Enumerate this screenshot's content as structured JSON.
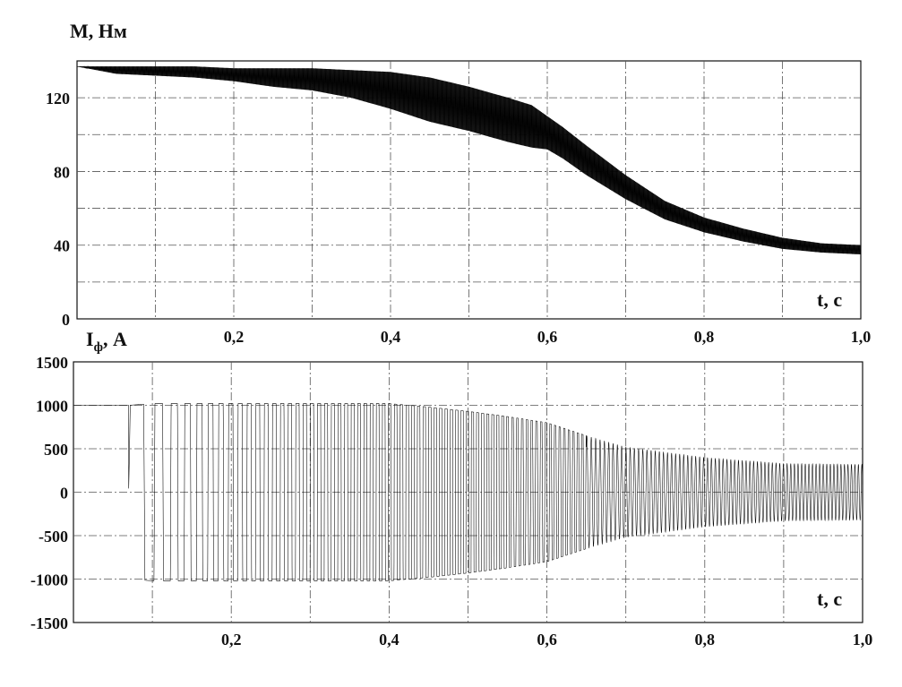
{
  "chart_data": [
    {
      "type": "line",
      "ylabel": "M, Нм",
      "xlabel": "t, с",
      "xlim": [
        0,
        1.0
      ],
      "ylim": [
        0,
        140
      ],
      "yticks": [
        0,
        40,
        80,
        120
      ],
      "ytick_labels": [
        "0",
        "40",
        "80",
        "120"
      ],
      "grid": true,
      "series": [
        {
          "x": [
            0,
            0.05,
            0.1,
            0.15,
            0.2,
            0.25,
            0.3,
            0.35,
            0.4,
            0.45,
            0.5,
            0.55,
            0.58,
            0.6,
            0.62,
            0.65,
            0.7,
            0.75,
            0.8,
            0.85,
            0.9,
            0.95,
            1.0
          ],
          "upper": [
            137,
            137,
            137,
            137,
            136,
            136,
            136,
            135,
            134,
            131,
            126,
            120,
            116,
            110,
            104,
            94,
            78,
            64,
            55,
            49,
            44,
            41,
            40
          ],
          "lower": [
            137,
            133,
            132,
            131,
            129,
            126,
            124,
            120,
            114,
            107,
            102,
            96,
            93,
            92,
            87,
            78,
            65,
            54,
            47,
            42,
            38,
            36,
            35
          ]
        }
      ]
    },
    {
      "type": "line",
      "ylabel": "Iф, А",
      "xlabel": "t, с",
      "xlim": [
        0,
        1.0
      ],
      "ylim": [
        -1500,
        1500
      ],
      "yticks": [
        -1500,
        -1000,
        -500,
        0,
        500,
        1000,
        1500
      ],
      "ytick_labels": [
        "-1500",
        "-1000",
        "-500",
        "0",
        "500",
        "1000",
        "1500"
      ],
      "grid": true,
      "series": [
        {
          "x": [
            0,
            0.07,
            0.1,
            0.2,
            0.3,
            0.4,
            0.45,
            0.5,
            0.55,
            0.6,
            0.65,
            0.7,
            0.8,
            0.9,
            1.0
          ],
          "amplitude": [
            1000,
            1000,
            1020,
            1020,
            1020,
            1020,
            980,
            930,
            870,
            800,
            650,
            520,
            400,
            330,
            320
          ]
        }
      ]
    }
  ],
  "shared_xtick_labels": [
    "0,2",
    "0,4",
    "0,6",
    "0,8",
    "1,0"
  ],
  "shared_xticks": [
    0.2,
    0.4,
    0.6,
    0.8,
    1.0
  ]
}
